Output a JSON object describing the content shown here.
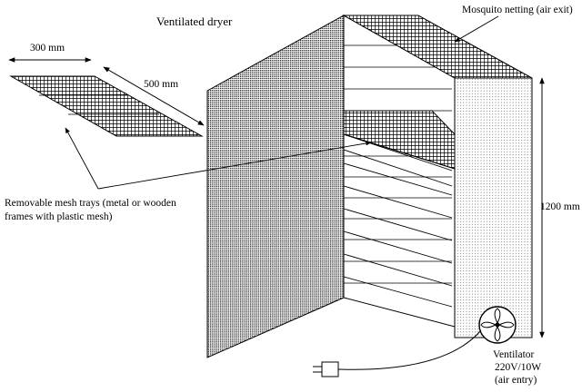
{
  "diagram": {
    "title": "Ventilated dryer",
    "dimensions": {
      "tray_width": "300 mm",
      "tray_depth": "500 mm",
      "height": "1200 mm"
    },
    "labels": {
      "netting": "Mosquito netting (air exit)",
      "trays_line1": "Removable mesh trays (metal or wooden",
      "trays_line2": "frames with plastic mesh)",
      "ventilator_line1": "Ventilator",
      "ventilator_line2": "220V/10W",
      "ventilator_line3": "(air entry)"
    },
    "components": [
      "mesh-tray",
      "dryer-cabinet",
      "mosquito-netting",
      "ventilator-fan",
      "power-plug"
    ],
    "colors": {
      "line": "#000000",
      "mesh": "#000000",
      "background": "#ffffff"
    }
  }
}
